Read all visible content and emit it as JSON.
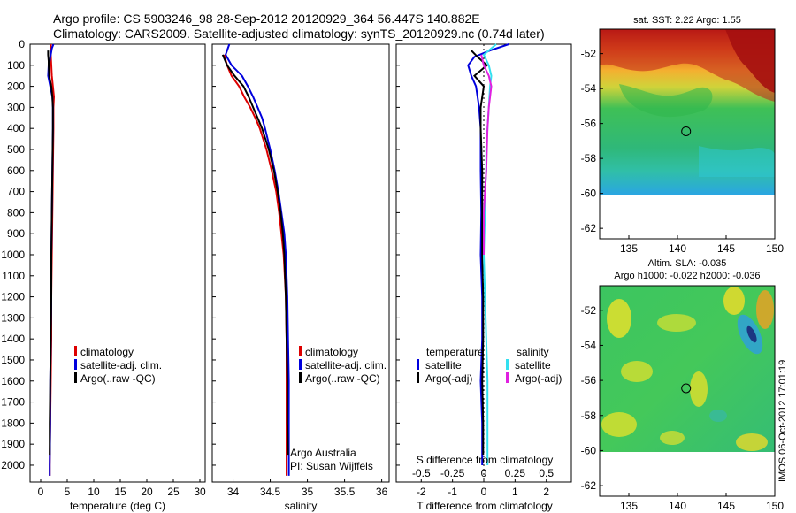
{
  "header": {
    "line1": "Argo profile: CS 5903246_98 28-Sep-2012 20120929_364 56.447S 140.882E",
    "line2": "Climatology: CARS2009. Satellite-adjusted climatology: synTS_20120929.nc (0.74d later)"
  },
  "colors": {
    "climatology": "#dd0000",
    "satellite": "#0000dd",
    "argo": "#000000",
    "sal_satellite": "#33e0f0",
    "sal_argo": "#e020e0"
  },
  "chart_data": [
    {
      "type": "line",
      "panel": "temperature",
      "xlabel": "temperature (deg C)",
      "ylabel": "",
      "xlim": [
        -2,
        31
      ],
      "ylim": [
        2080,
        0
      ],
      "xticks": [
        0,
        5,
        10,
        15,
        20,
        25,
        30
      ],
      "yticks": [
        0,
        100,
        200,
        300,
        400,
        500,
        600,
        700,
        800,
        900,
        1000,
        1100,
        1200,
        1300,
        1400,
        1500,
        1600,
        1700,
        1800,
        1900,
        2000
      ],
      "legend": [
        "climatology",
        "satellite-adj. clim.",
        "Argo(..raw -QC)"
      ],
      "legend_position": "lower-right",
      "series": [
        {
          "name": "climatology",
          "color": "#dd0000",
          "y": [
            0,
            50,
            100,
            150,
            200,
            250,
            300,
            400,
            600,
            800,
            1000,
            1200,
            1400,
            1600,
            1800,
            2000,
            2050
          ],
          "values": [
            1.9,
            1.9,
            2.0,
            2.1,
            2.3,
            2.5,
            2.4,
            2.4,
            2.3,
            2.2,
            2.1,
            2.0,
            2.0,
            1.9,
            1.8,
            1.7,
            1.7
          ]
        },
        {
          "name": "satellite-adj. clim.",
          "color": "#0000dd",
          "y": [
            0,
            20,
            50,
            80,
            100,
            150,
            200,
            250,
            300,
            400,
            600,
            800,
            1000,
            1200,
            1400,
            1600,
            1800,
            2000,
            2050
          ],
          "values": [
            2.4,
            2.1,
            1.9,
            1.7,
            1.5,
            1.4,
            1.8,
            2.2,
            2.3,
            2.3,
            2.2,
            2.1,
            2.0,
            2.0,
            1.9,
            1.8,
            1.8,
            1.7,
            1.7
          ]
        },
        {
          "name": "Argo(..raw -QC)",
          "color": "#000000",
          "y": [
            30,
            50,
            80,
            100,
            150,
            200,
            250,
            300,
            400,
            600,
            800,
            1000,
            1200,
            1400,
            1600,
            1800,
            1950
          ],
          "values": [
            1.4,
            1.4,
            1.5,
            1.5,
            1.6,
            2.0,
            2.2,
            2.3,
            2.3,
            2.2,
            2.1,
            2.0,
            2.0,
            1.9,
            1.8,
            1.7,
            1.7
          ]
        }
      ]
    },
    {
      "type": "line",
      "panel": "salinity",
      "xlabel": "salinity",
      "ylabel": "",
      "xlim": [
        33.72,
        36.1
      ],
      "ylim": [
        2080,
        0
      ],
      "xticks": [
        34,
        34.5,
        35,
        35.5,
        36
      ],
      "legend": [
        "climatology",
        "satellite-adj. clim.",
        "Argo(..raw -QC)"
      ],
      "legend_position": "lower-right",
      "annotation": [
        "Argo Australia",
        "PI: Susan Wijffels"
      ],
      "series": [
        {
          "name": "climatology",
          "color": "#dd0000",
          "y": [
            50,
            100,
            150,
            200,
            250,
            300,
            350,
            400,
            500,
            600,
            700,
            800,
            900,
            1000,
            1200,
            1400,
            1600,
            1800,
            2000,
            2050
          ],
          "values": [
            33.88,
            33.92,
            33.98,
            34.08,
            34.15,
            34.23,
            34.3,
            34.36,
            34.45,
            34.52,
            34.58,
            34.62,
            34.65,
            34.68,
            34.71,
            34.72,
            34.72,
            34.72,
            34.72,
            34.72
          ]
        },
        {
          "name": "satellite-adj. clim.",
          "color": "#0000dd",
          "y": [
            0,
            50,
            100,
            150,
            200,
            250,
            300,
            350,
            400,
            500,
            600,
            700,
            800,
            900,
            1000,
            1200,
            1400,
            1600,
            1800,
            2000,
            2050
          ],
          "values": [
            33.95,
            33.9,
            33.98,
            34.12,
            34.2,
            34.27,
            34.33,
            34.39,
            34.43,
            34.5,
            34.56,
            34.61,
            34.65,
            34.69,
            34.71,
            34.73,
            34.74,
            34.75,
            34.75,
            34.75,
            34.75
          ]
        },
        {
          "name": "Argo(..raw -QC)",
          "color": "#000000",
          "y": [
            50,
            100,
            150,
            200,
            250,
            300,
            350,
            400,
            500,
            600,
            700,
            800,
            900,
            1000,
            1200,
            1400,
            1600,
            1800,
            1950
          ],
          "values": [
            33.86,
            33.92,
            34.02,
            34.14,
            34.21,
            34.27,
            34.33,
            34.39,
            34.48,
            34.55,
            34.6,
            34.64,
            34.67,
            34.69,
            34.71,
            34.72,
            34.73,
            34.73,
            34.74
          ]
        }
      ]
    },
    {
      "type": "line",
      "panel": "difference",
      "xlabel": "T difference from climatology",
      "xlabel_top": "S difference from climatology",
      "ylabel": "",
      "xlim": [
        -2.8,
        2.8
      ],
      "ylim": [
        2080,
        0
      ],
      "xticks": [
        -2,
        -1,
        0,
        1,
        2
      ],
      "sticks": [
        {
          "value": -0.5,
          "label": "-0.5"
        },
        {
          "value": -0.25,
          "label": "-0.25"
        },
        {
          "value": 0,
          "label": "0"
        },
        {
          "value": 0.25,
          "label": "0.25"
        },
        {
          "value": 0.5,
          "label": "0.5"
        }
      ],
      "legend_headers": [
        "temperature",
        "salinity"
      ],
      "legend": [
        "satellite",
        "Argo(-adj)",
        "satellite",
        "Argo(-adj)"
      ],
      "legend_position": "lower-center",
      "series": [
        {
          "name": "satellite",
          "group": "temperature",
          "color": "#0000dd",
          "y": [
            0,
            30,
            60,
            100,
            150,
            200,
            300,
            400,
            600,
            800,
            1000,
            1200,
            1400,
            1600,
            1800,
            2000
          ],
          "values": [
            0.8,
            0.2,
            -0.3,
            -0.5,
            -0.4,
            -0.25,
            -0.15,
            -0.1,
            -0.1,
            -0.08,
            -0.1,
            -0.05,
            -0.05,
            -0.1,
            -0.05,
            -0.05
          ]
        },
        {
          "name": "Argo(-adj)",
          "group": "temperature",
          "color": "#000000",
          "y": [
            30,
            60,
            100,
            150,
            200,
            300,
            400,
            600,
            800,
            1000,
            1200,
            1400,
            1600,
            1800,
            1950
          ],
          "values": [
            -0.4,
            -0.2,
            0.1,
            -0.3,
            0.0,
            -0.1,
            -0.1,
            -0.05,
            -0.05,
            -0.05,
            -0.02,
            -0.02,
            -0.05,
            -0.02,
            -0.02
          ]
        },
        {
          "name": "satellite",
          "group": "salinity",
          "color": "#33e0f0",
          "y": [
            0,
            50,
            100,
            150,
            200,
            300,
            400,
            500,
            600,
            700,
            800,
            1000,
            1200,
            1400,
            1600,
            1800,
            2000
          ],
          "values": [
            0.1,
            0.0,
            0.04,
            0.06,
            0.05,
            0.04,
            0.03,
            0.02,
            0.02,
            0.01,
            0.01,
            0.0,
            0.01,
            0.02,
            0.03,
            0.03,
            0.03
          ]
        },
        {
          "name": "Argo(-adj)",
          "group": "salinity",
          "color": "#e020e0",
          "y": [
            50,
            100,
            150,
            200,
            250,
            300,
            400,
            500,
            600,
            700,
            800,
            1000
          ],
          "values": [
            -0.02,
            0.0,
            0.04,
            0.06,
            0.05,
            0.04,
            0.03,
            0.025,
            0.02,
            0.01,
            0.0,
            0.0
          ]
        }
      ]
    },
    {
      "type": "heatmap",
      "panel": "sst_map",
      "title": "sat. SST: 2.22  Argo: 1.55",
      "xlim": [
        132,
        150
      ],
      "ylim": [
        -62.6,
        -50.6
      ],
      "xticks": [
        135,
        140,
        145,
        150
      ],
      "yticks": [
        -52,
        -54,
        -56,
        -58,
        -60,
        -62
      ],
      "ytick_labels": [
        "-52",
        "-54",
        "-56",
        "-58",
        "-60",
        "-62"
      ],
      "data_extent_lat": [
        -60.2,
        -50.6
      ],
      "marker": {
        "lon": 140.882,
        "lat": -56.447
      }
    },
    {
      "type": "heatmap",
      "panel": "sla_map",
      "title": "Altim. SLA: -0.035",
      "subtitle": "Argo h1000: -0.022 h2000: -0.036",
      "xlim": [
        132,
        150
      ],
      "ylim": [
        -62.6,
        -50.6
      ],
      "xticks": [
        135,
        140,
        145,
        150
      ],
      "yticks": [
        -52,
        -54,
        -56,
        -58,
        -60,
        -62
      ],
      "ytick_labels": [
        "-52",
        "-54",
        "-56",
        "-58",
        "-60",
        "-62"
      ],
      "data_extent_lat": [
        -60.2,
        -50.6
      ],
      "marker": {
        "lon": 140.882,
        "lat": -56.447
      }
    }
  ],
  "footer": {
    "stamp": "IMOS 06-Oct-2012 17:01:19"
  }
}
